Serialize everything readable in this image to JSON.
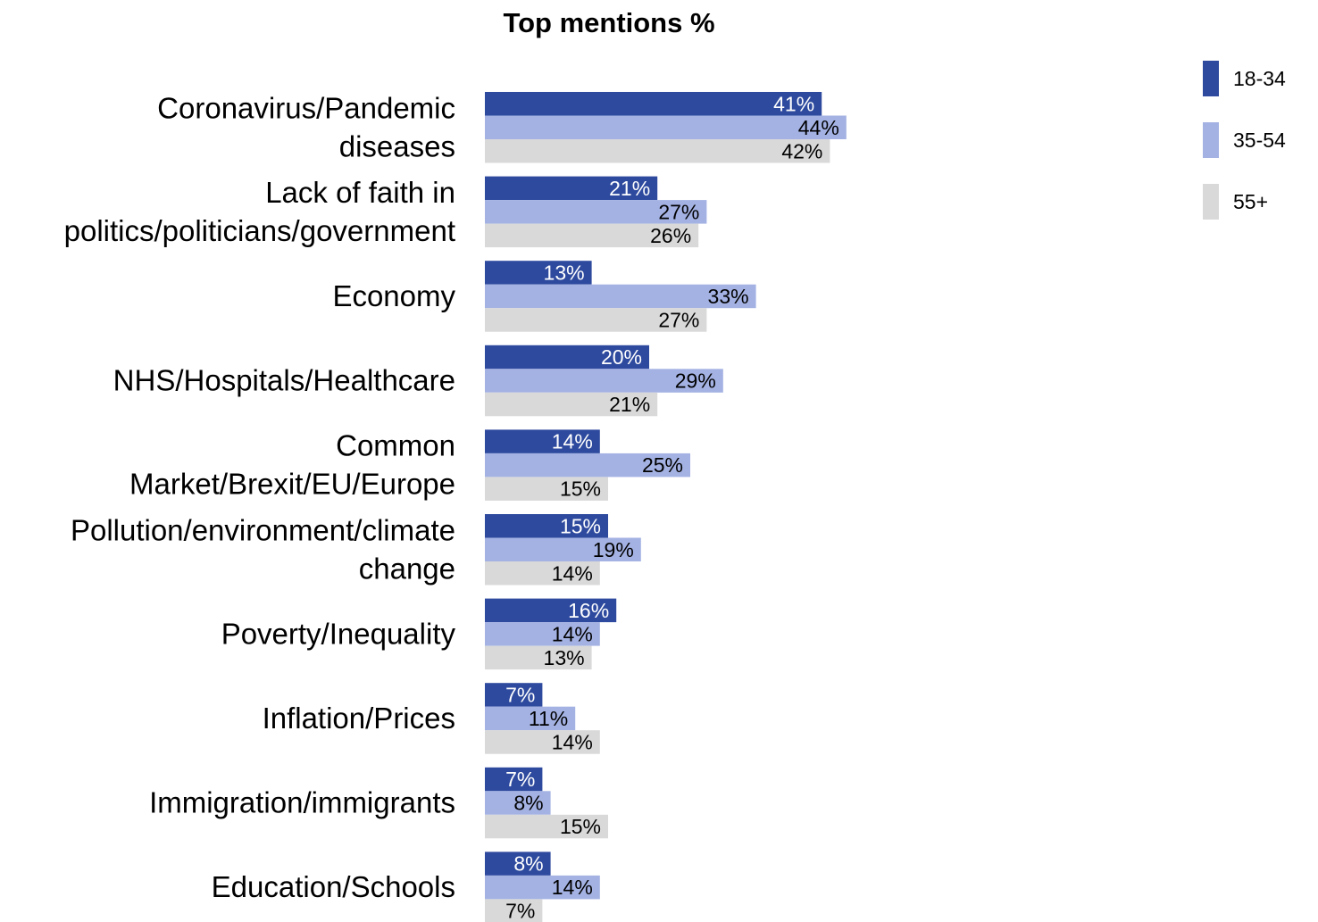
{
  "chart_data": {
    "type": "bar",
    "orientation": "horizontal",
    "title": "Top mentions %",
    "categories": [
      "Coronavirus/Pandemic diseases",
      "Lack of faith in politics/politicians/government",
      "Economy",
      "NHS/Hospitals/Healthcare",
      "Common Market/Brexit/EU/Europe",
      "Pollution/environment/climate change",
      "Poverty/Inequality",
      "Inflation/Prices",
      "Immigration/immigrants",
      "Education/Schools"
    ],
    "category_lines": [
      [
        "Coronavirus/Pandemic",
        "diseases"
      ],
      [
        "Lack of faith in",
        "politics/politicians/government"
      ],
      [
        "Economy"
      ],
      [
        "NHS/Hospitals/Healthcare"
      ],
      [
        "Common",
        "Market/Brexit/EU/Europe"
      ],
      [
        "Pollution/environment/climate",
        "change"
      ],
      [
        "Poverty/Inequality"
      ],
      [
        "Inflation/Prices"
      ],
      [
        "Immigration/immigrants"
      ],
      [
        "Education/Schools"
      ]
    ],
    "series": [
      {
        "name": "18-34",
        "color": "#2e4a9e",
        "label_color": "#ffffff",
        "values": [
          41,
          21,
          13,
          20,
          14,
          15,
          16,
          7,
          7,
          8
        ]
      },
      {
        "name": "35-54",
        "color": "#a4b2e3",
        "label_color": "#000000",
        "values": [
          44,
          27,
          33,
          29,
          25,
          19,
          14,
          11,
          8,
          14
        ]
      },
      {
        "name": "55+",
        "color": "#d9d9d9",
        "label_color": "#000000",
        "values": [
          42,
          26,
          27,
          21,
          15,
          14,
          13,
          14,
          15,
          7
        ]
      }
    ],
    "value_suffix": "%",
    "legend_position": "top-right",
    "grid": false
  }
}
